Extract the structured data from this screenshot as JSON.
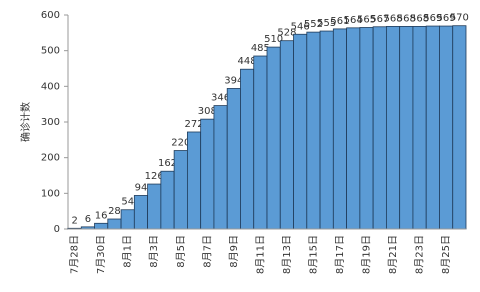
{
  "chart_data": {
    "type": "bar",
    "y_label": "确诊计数",
    "categories": [
      "7月28日",
      null,
      "7月30日",
      null,
      "8月1日",
      null,
      "8月3日",
      null,
      "8月5日",
      null,
      "8月7日",
      null,
      "8月9日",
      null,
      "8月11日",
      null,
      "8月13日",
      null,
      "8月15日",
      null,
      "8月17日",
      null,
      "8月19日",
      null,
      "8月21日",
      null,
      "8月23日",
      null,
      "8月25日",
      null
    ],
    "values": [
      2,
      6,
      16,
      28,
      54,
      94,
      126,
      162,
      220,
      272,
      308,
      346,
      394,
      448,
      485,
      510,
      528,
      546,
      552,
      555,
      561,
      564,
      565,
      567,
      568,
      568,
      568,
      569,
      569,
      570
    ],
    "color": "#5b9bd5",
    "ylim": [
      0,
      600
    ],
    "yticks": [
      0,
      100,
      200,
      300,
      400,
      500,
      600
    ],
    "grid": false
  }
}
